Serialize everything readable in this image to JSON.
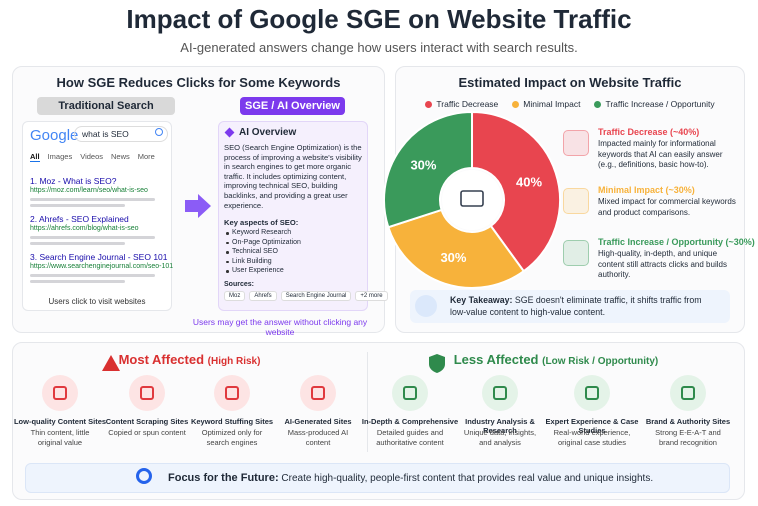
{
  "header": {
    "title": "Impact of Google SGE on Website Traffic",
    "subtitle": "AI-generated answers change how users interact with search results."
  },
  "comparison": {
    "title": "How SGE Reduces Clicks for Some Keywords",
    "traditional_label": "Traditional Search",
    "sge_label": "SGE / AI Overview",
    "search": {
      "logo": "Google",
      "query": "what is SEO",
      "tabs": [
        "All",
        "Images",
        "Videos",
        "News",
        "More"
      ],
      "results": [
        {
          "title": "1. Moz - What is SEO?",
          "url": "https://moz.com/learn/seo/what-is-seo"
        },
        {
          "title": "2. Ahrefs - SEO Explained",
          "url": "https://ahrefs.com/blog/what-is-seo"
        },
        {
          "title": "3. Search Engine Journal - SEO 101",
          "url": "https://www.searchenginejournal.com/seo-101"
        }
      ],
      "caption": "Users click to visit websites"
    },
    "ai_overview": {
      "title": "AI Overview",
      "text": "SEO (Search Engine Optimization) is the process of improving a website's visibility in search engines to get more organic traffic. It includes optimizing content, improving technical SEO, building backlinks, and providing a great user experience.",
      "aspects_title": "Key aspects of SEO:",
      "aspects": [
        "Keyword Research",
        "On-Page Optimization",
        "Technical SEO",
        "Link Building",
        "User Experience"
      ],
      "sources_title": "Sources:",
      "sources": [
        "Moz",
        "Ahrefs",
        "Search Engine Journal",
        "+2 more"
      ]
    },
    "caption": "Users may get the answer without clicking any website"
  },
  "chart_data": {
    "type": "pie",
    "title": "Estimated Impact on Website Traffic",
    "donut": true,
    "categories": [
      "Traffic Decrease",
      "Minimal Impact",
      "Traffic Increase / Opportunity"
    ],
    "values": [
      40,
      30,
      30
    ],
    "value_labels": [
      "40%",
      "30%",
      "30%"
    ],
    "colors": [
      "#e8454f",
      "#f7b23b",
      "#3a9a5b"
    ]
  },
  "impacts": [
    {
      "title": "Traffic Decrease (~40%)",
      "text": "Impacted mainly for informational keywords that AI can easily answer (e.g., definitions, basic how-to)."
    },
    {
      "title": "Minimal Impact (~30%)",
      "text": "Mixed impact for commercial keywords and product comparisons."
    },
    {
      "title": "Traffic Increase / Opportunity (~30%)",
      "text": "High-quality, in-depth, and unique content still attracts clicks and builds authority."
    }
  ],
  "takeaway": {
    "label": "Key Takeaway:",
    "text": "SGE doesn't eliminate traffic, it shifts traffic from low-value content to high-value content."
  },
  "most_affected": {
    "title": "Most Affected",
    "note": "(High Risk)",
    "items": [
      {
        "title": "Low-quality Content Sites",
        "text": "Thin content, little original value"
      },
      {
        "title": "Content Scraping Sites",
        "text": "Copied or spun content"
      },
      {
        "title": "Keyword Stuffing Sites",
        "text": "Optimized only for search engines"
      },
      {
        "title": "AI-Generated Sites",
        "text": "Mass-produced AI content"
      }
    ]
  },
  "less_affected": {
    "title": "Less Affected",
    "note": "(Low Risk / Opportunity)",
    "items": [
      {
        "title": "In-Depth & Comprehensive",
        "text": "Detailed guides and authoritative content"
      },
      {
        "title": "Industry Analysis & Research",
        "text": "Unique data, insights, and analysis"
      },
      {
        "title": "Expert Experience & Case Studies",
        "text": "Real-world experience, original case studies"
      },
      {
        "title": "Brand & Authority Sites",
        "text": "Strong E-E-A-T and brand recognition"
      }
    ]
  },
  "focus": {
    "label": "Focus for the Future:",
    "text": "Create high-quality, people-first content that provides real value and unique insights."
  }
}
